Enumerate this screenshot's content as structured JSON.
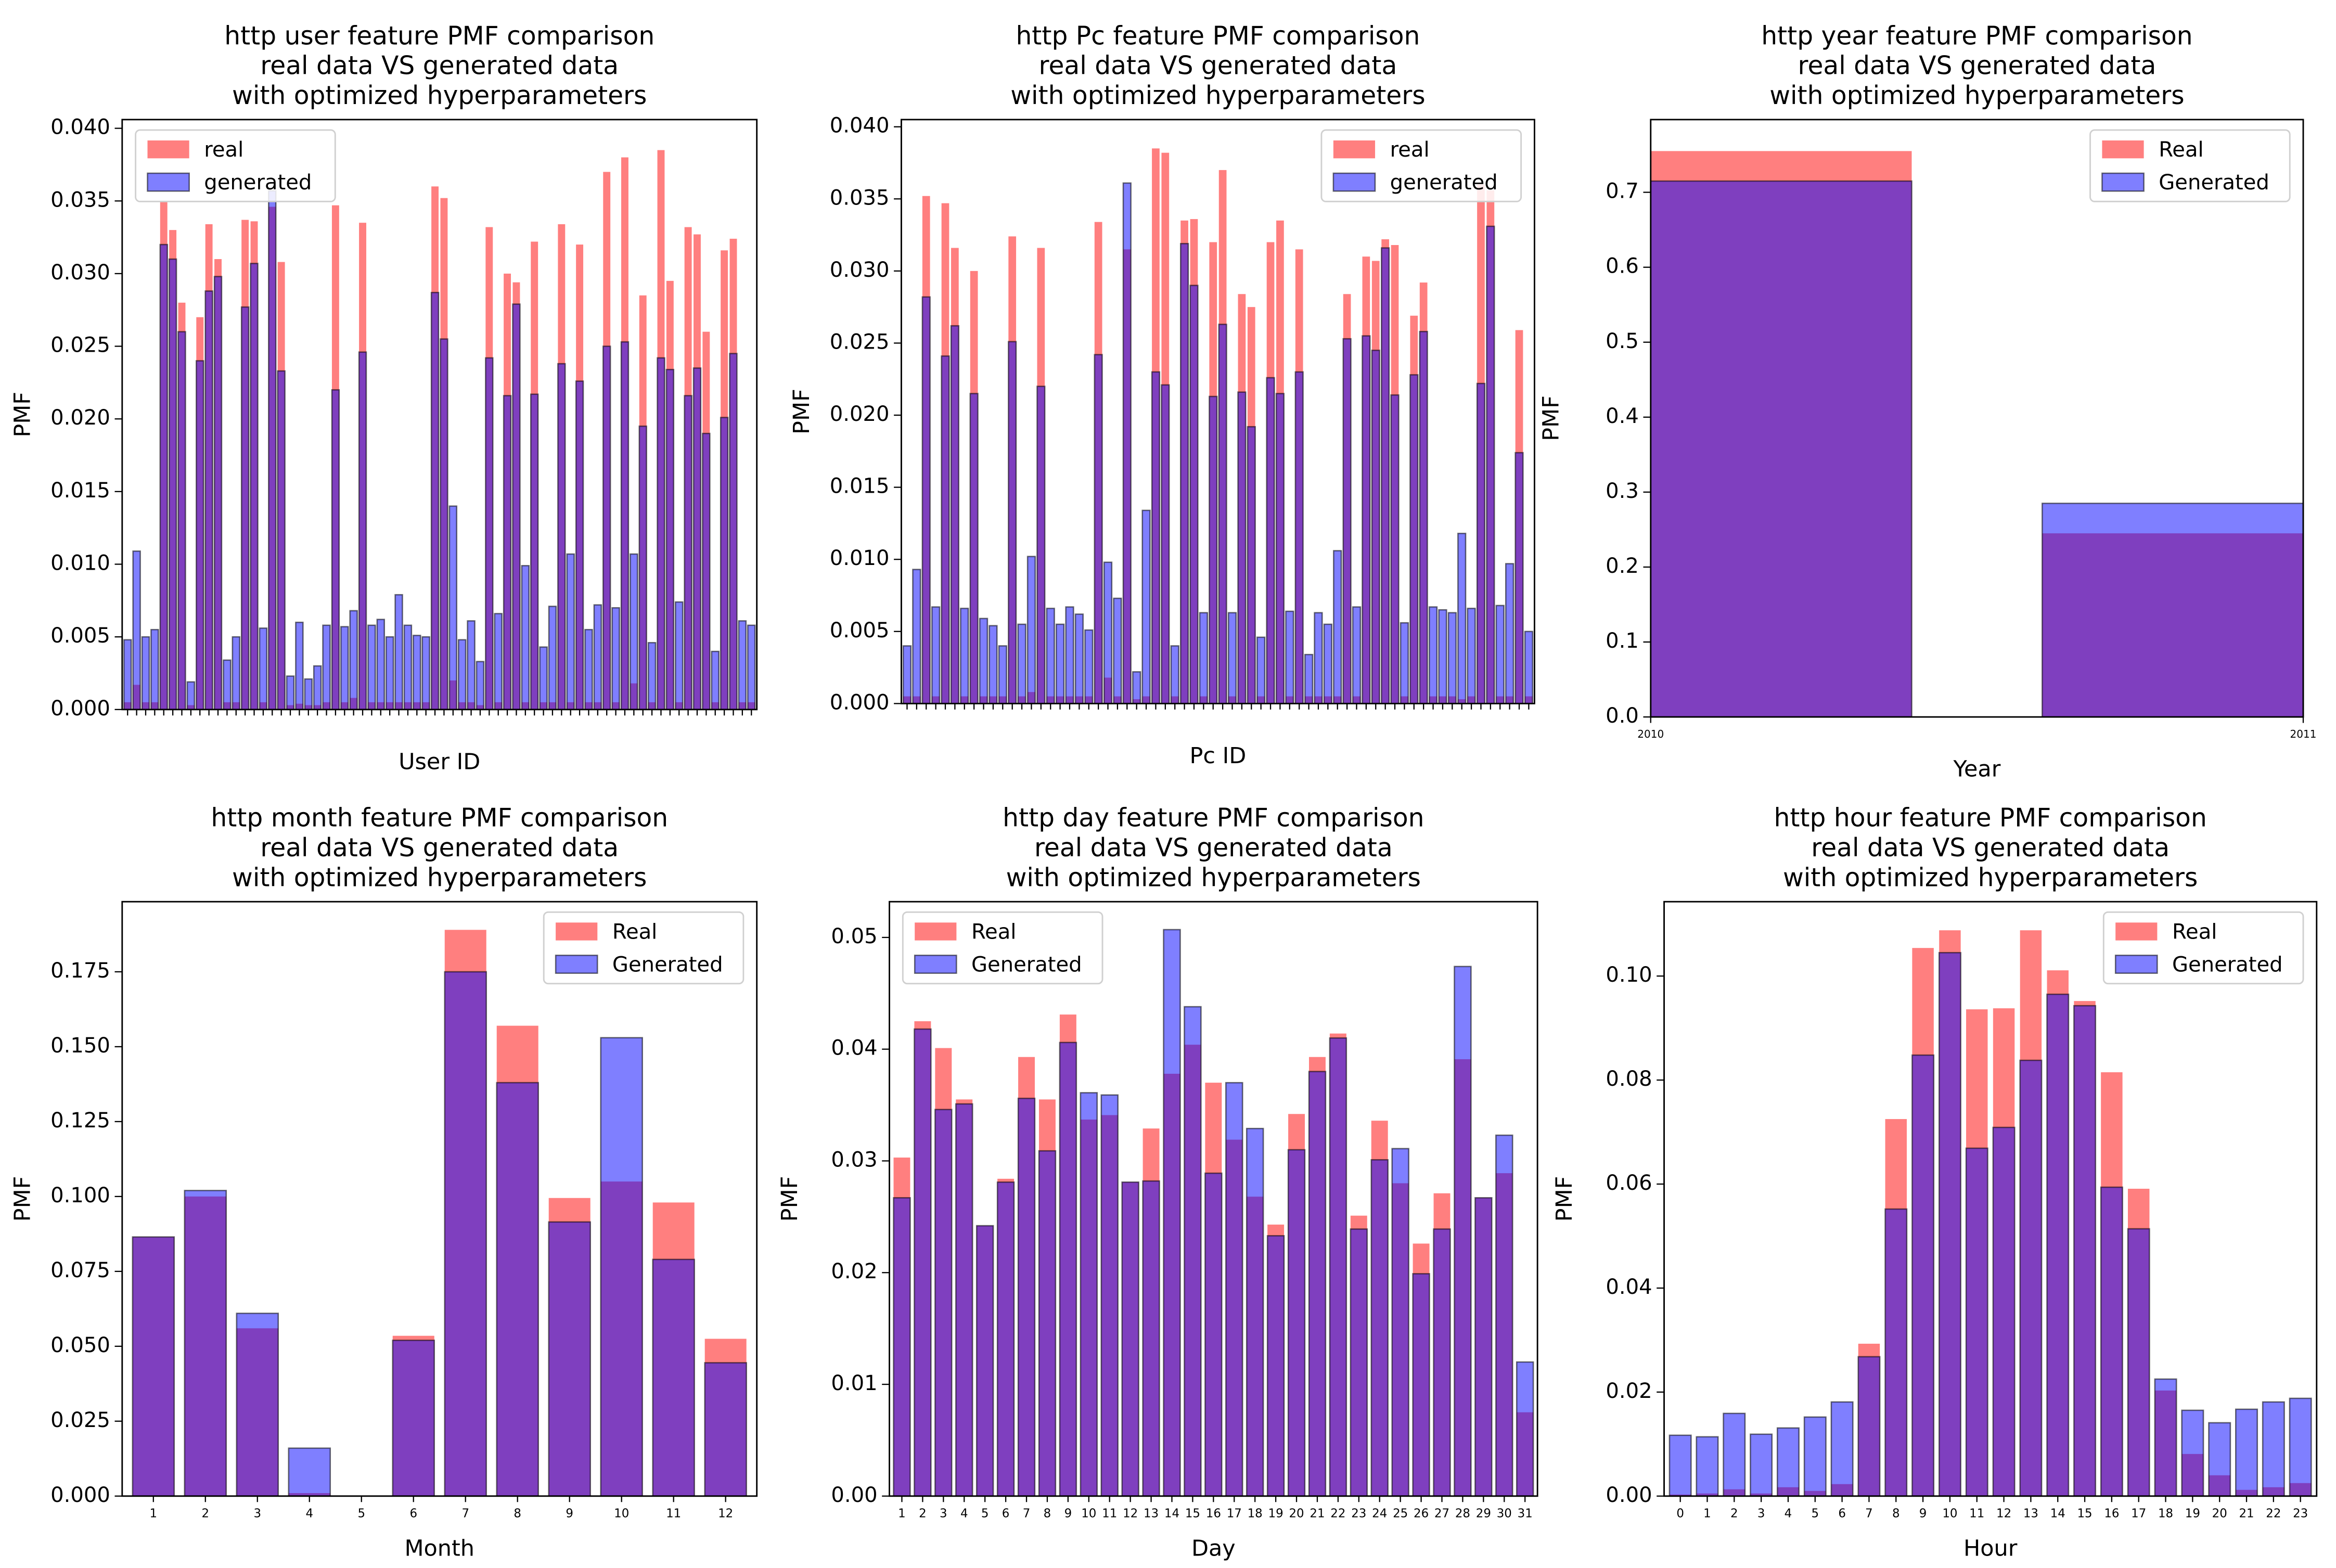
{
  "chart_data": [
    {
      "type": "bar",
      "title": [
        "http user feature PMF comparison",
        "real data VS generated data",
        "with optimized hyperparameters"
      ],
      "xlabel": "User ID",
      "ylabel": "PMF",
      "legend": "upper left",
      "categories": [
        null,
        null,
        null,
        null,
        null,
        null,
        null,
        null,
        null,
        null,
        null,
        null,
        null,
        null,
        null,
        null,
        null,
        null,
        null,
        null,
        null,
        null,
        null,
        null,
        null,
        null,
        null,
        null,
        null,
        null,
        null,
        null,
        null,
        null,
        null,
        null,
        null,
        null,
        null,
        null,
        null,
        null,
        null,
        null,
        null,
        null,
        null,
        null,
        null,
        null,
        null,
        null,
        null,
        null,
        null,
        null,
        null,
        null,
        null,
        null,
        null,
        null,
        null,
        null,
        null,
        null,
        null,
        null,
        null,
        null
      ],
      "series": [
        {
          "name": "real",
          "color": "#ff0000",
          "values": [
            0.0005,
            0.0017,
            0.0005,
            0.0005,
            0.035,
            0.033,
            0.028,
            0.0003,
            0.027,
            0.0334,
            0.031,
            0.0005,
            0.0005,
            0.0337,
            0.0336,
            0.0005,
            0.0346,
            0.0308,
            0.0003,
            0.0004,
            0.0003,
            0.0003,
            0.0005,
            0.0347,
            0.0005,
            0.0008,
            0.0335,
            0.0005,
            0.0005,
            0.0005,
            0.0005,
            0.0005,
            0.0005,
            0.0005,
            0.036,
            0.0352,
            0.002,
            0.0005,
            0.0005,
            0.0003,
            0.0332,
            0.0005,
            0.03,
            0.0294,
            0.0005,
            0.0322,
            0.0005,
            0.0005,
            0.0334,
            0.0005,
            0.032,
            0.0005,
            0.0005,
            0.037,
            0.0005,
            0.038,
            0.0018,
            0.0285,
            0.0005,
            0.0385,
            0.0295,
            0.0005,
            0.0332,
            0.0327,
            0.026,
            0.0005,
            0.0316,
            0.0324,
            0.0005,
            0.0005
          ]
        },
        {
          "name": "generated",
          "color": "#0000ff",
          "values": [
            0.0048,
            0.0109,
            0.005,
            0.0055,
            0.032,
            0.031,
            0.026,
            0.0019,
            0.024,
            0.0288,
            0.0298,
            0.0034,
            0.005,
            0.0277,
            0.0307,
            0.0056,
            0.0357,
            0.0233,
            0.0023,
            0.006,
            0.0021,
            0.003,
            0.0058,
            0.022,
            0.0057,
            0.0068,
            0.0246,
            0.0058,
            0.0062,
            0.005,
            0.0079,
            0.0058,
            0.0051,
            0.005,
            0.0287,
            0.0255,
            0.014,
            0.0048,
            0.0061,
            0.0033,
            0.0242,
            0.0066,
            0.0216,
            0.0279,
            0.0099,
            0.0217,
            0.0043,
            0.0071,
            0.0238,
            0.0107,
            0.0226,
            0.0055,
            0.0072,
            0.025,
            0.007,
            0.0253,
            0.0107,
            0.0195,
            0.0046,
            0.0242,
            0.0234,
            0.0074,
            0.0216,
            0.0235,
            0.019,
            0.004,
            0.0201,
            0.0245,
            0.0061,
            0.0058
          ]
        }
      ],
      "ylim": [
        0,
        0.0406
      ],
      "yticks": [
        {
          "value": 0,
          "label": "0.000"
        },
        {
          "value": 0.005,
          "label": "0.005"
        },
        {
          "value": 0.01,
          "label": "0.010"
        },
        {
          "value": 0.015,
          "label": "0.015"
        },
        {
          "value": 0.02,
          "label": "0.020"
        },
        {
          "value": 0.025,
          "label": "0.025"
        },
        {
          "value": 0.03,
          "label": "0.030"
        },
        {
          "value": 0.035,
          "label": "0.035"
        },
        {
          "value": 0.04,
          "label": "0.040"
        }
      ]
    },
    {
      "type": "bar",
      "title": [
        "http Pc feature PMF comparison",
        "real data VS generated data",
        "with optimized hyperparameters"
      ],
      "xlabel": "Pc ID",
      "ylabel": "PMF",
      "legend": "upper right",
      "categories": [
        null,
        null,
        null,
        null,
        null,
        null,
        null,
        null,
        null,
        null,
        null,
        null,
        null,
        null,
        null,
        null,
        null,
        null,
        null,
        null,
        null,
        null,
        null,
        null,
        null,
        null,
        null,
        null,
        null,
        null,
        null,
        null,
        null,
        null,
        null,
        null,
        null,
        null,
        null,
        null,
        null,
        null,
        null,
        null,
        null,
        null,
        null,
        null,
        null,
        null,
        null,
        null,
        null,
        null,
        null,
        null,
        null,
        null,
        null,
        null,
        null,
        null,
        null,
        null,
        null,
        null
      ],
      "series": [
        {
          "name": "real",
          "color": "#ff0000",
          "values": [
            0.0005,
            0.0005,
            0.0352,
            0.0005,
            0.0347,
            0.0316,
            0.0005,
            0.03,
            0.0005,
            0.0005,
            0.0005,
            0.0324,
            0.0005,
            0.0008,
            0.0316,
            0.0005,
            0.0005,
            0.0005,
            0.0005,
            0.0005,
            0.0334,
            0.0018,
            0.0005,
            0.0315,
            0.0003,
            0.0005,
            0.0385,
            0.0382,
            0.0005,
            0.0335,
            0.0336,
            0.0005,
            0.032,
            0.037,
            0.0005,
            0.0284,
            0.0275,
            0.0005,
            0.032,
            0.0335,
            0.0005,
            0.0315,
            0.0005,
            0.0005,
            0.0005,
            0.0005,
            0.0284,
            0.0005,
            0.031,
            0.0307,
            0.0322,
            0.0318,
            0.0005,
            0.0269,
            0.0292,
            0.0005,
            0.0005,
            0.0005,
            0.0003,
            0.0005,
            0.036,
            0.0356,
            0.0005,
            0.0005,
            0.0259,
            0.0005
          ]
        },
        {
          "name": "generated",
          "color": "#0000ff",
          "values": [
            0.004,
            0.0093,
            0.0282,
            0.0067,
            0.0241,
            0.0262,
            0.0066,
            0.0215,
            0.0059,
            0.0054,
            0.004,
            0.0251,
            0.0055,
            0.0102,
            0.022,
            0.0066,
            0.0055,
            0.0067,
            0.0062,
            0.0051,
            0.0242,
            0.0098,
            0.0073,
            0.0361,
            0.0022,
            0.0134,
            0.023,
            0.0221,
            0.004,
            0.0319,
            0.029,
            0.0063,
            0.0213,
            0.0263,
            0.0063,
            0.0216,
            0.0192,
            0.0046,
            0.0226,
            0.0215,
            0.0064,
            0.023,
            0.0034,
            0.0063,
            0.0055,
            0.0106,
            0.0253,
            0.0067,
            0.0255,
            0.0245,
            0.0316,
            0.0214,
            0.0056,
            0.0228,
            0.0258,
            0.0067,
            0.0065,
            0.0063,
            0.0118,
            0.0066,
            0.0222,
            0.0331,
            0.0068,
            0.0097,
            0.0174,
            0.005
          ]
        }
      ],
      "ylim": [
        0,
        0.0405
      ],
      "yticks": [
        {
          "value": 0,
          "label": "0.000"
        },
        {
          "value": 0.005,
          "label": "0.005"
        },
        {
          "value": 0.01,
          "label": "0.010"
        },
        {
          "value": 0.015,
          "label": "0.015"
        },
        {
          "value": 0.02,
          "label": "0.020"
        },
        {
          "value": 0.025,
          "label": "0.025"
        },
        {
          "value": 0.03,
          "label": "0.030"
        },
        {
          "value": 0.035,
          "label": "0.035"
        },
        {
          "value": 0.04,
          "label": "0.040"
        }
      ]
    },
    {
      "type": "histogram",
      "title": [
        "http year feature PMF comparison",
        "real data VS generated data",
        "with optimized hyperparameters"
      ],
      "xlabel": "Year",
      "ylabel": "PMF",
      "legend": "upper right",
      "bins": [
        2010,
        2010.5,
        2011
      ],
      "series": [
        {
          "name": "Real",
          "color": "#ff0000",
          "values": [
            0.755,
            0.245
          ]
        },
        {
          "name": "Generated",
          "color": "#0000ff",
          "values": [
            0.715,
            0.285
          ]
        }
      ],
      "xlim": [
        2010,
        2011
      ],
      "xticks": [
        2010,
        2011
      ],
      "ylim": [
        0,
        0.797
      ],
      "yticks": [
        {
          "value": 0,
          "label": "0.0"
        },
        {
          "value": 0.1,
          "label": "0.1"
        },
        {
          "value": 0.2,
          "label": "0.2"
        },
        {
          "value": 0.3,
          "label": "0.3"
        },
        {
          "value": 0.4,
          "label": "0.4"
        },
        {
          "value": 0.5,
          "label": "0.5"
        },
        {
          "value": 0.6,
          "label": "0.6"
        },
        {
          "value": 0.7,
          "label": "0.7"
        }
      ]
    },
    {
      "type": "bar",
      "title": [
        "http month feature PMF comparison",
        "real data VS generated data",
        "with optimized hyperparameters"
      ],
      "xlabel": "Month",
      "ylabel": "PMF",
      "legend": "upper right",
      "categories": [
        "1",
        "2",
        "3",
        "4",
        "5",
        "6",
        "7",
        "8",
        "9",
        "10",
        "11",
        "12"
      ],
      "series": [
        {
          "name": "Real",
          "color": "#ff0000",
          "values": [
            0.0865,
            0.1,
            0.056,
            0.001,
            0,
            0.0535,
            0.189,
            0.157,
            0.0995,
            0.105,
            0.098,
            0.0525
          ]
        },
        {
          "name": "Generated",
          "color": "#0000ff",
          "values": [
            0.0865,
            0.102,
            0.061,
            0.016,
            0,
            0.052,
            0.175,
            0.138,
            0.0915,
            0.153,
            0.079,
            0.0445
          ]
        }
      ],
      "ylim": [
        0,
        0.1984
      ],
      "yticks": [
        {
          "value": 0,
          "label": "0.000"
        },
        {
          "value": 0.025,
          "label": "0.025"
        },
        {
          "value": 0.05,
          "label": "0.050"
        },
        {
          "value": 0.075,
          "label": "0.075"
        },
        {
          "value": 0.1,
          "label": "0.100"
        },
        {
          "value": 0.125,
          "label": "0.125"
        },
        {
          "value": 0.15,
          "label": "0.150"
        },
        {
          "value": 0.175,
          "label": "0.175"
        }
      ]
    },
    {
      "type": "bar",
      "title": [
        "http day feature PMF comparison",
        "real data VS generated data",
        "with optimized hyperparameters"
      ],
      "xlabel": "Day",
      "ylabel": "PMF",
      "legend": "upper left",
      "categories": [
        "1",
        "2",
        "3",
        "4",
        "5",
        "6",
        "7",
        "8",
        "9",
        "10",
        "11",
        "12",
        "13",
        "14",
        "15",
        "16",
        "17",
        "18",
        "19",
        "20",
        "21",
        "22",
        "23",
        "24",
        "25",
        "26",
        "27",
        "28",
        "29",
        "30",
        "31"
      ],
      "series": [
        {
          "name": "Real",
          "color": "#ff0000",
          "values": [
            0.0303,
            0.0425,
            0.0401,
            0.0355,
            0.0242,
            0.0284,
            0.0393,
            0.0355,
            0.0431,
            0.0337,
            0.0341,
            0.0281,
            0.0329,
            0.0378,
            0.0404,
            0.037,
            0.0319,
            0.0268,
            0.0243,
            0.0342,
            0.0393,
            0.0414,
            0.0251,
            0.0336,
            0.028,
            0.0226,
            0.0271,
            0.0391,
            0.0267,
            0.0289,
            0.0075
          ]
        },
        {
          "name": "Generated",
          "color": "#0000ff",
          "values": [
            0.0267,
            0.0418,
            0.0346,
            0.0351,
            0.0242,
            0.0281,
            0.0356,
            0.0309,
            0.0406,
            0.0361,
            0.0359,
            0.0281,
            0.0282,
            0.0507,
            0.0438,
            0.0289,
            0.037,
            0.0329,
            0.0233,
            0.031,
            0.038,
            0.041,
            0.0239,
            0.0301,
            0.0311,
            0.0199,
            0.0239,
            0.0474,
            0.0267,
            0.0323,
            0.012
          ]
        }
      ],
      "ylim": [
        0,
        0.0532
      ],
      "yticks": [
        {
          "value": 0,
          "label": "0.00"
        },
        {
          "value": 0.01,
          "label": "0.01"
        },
        {
          "value": 0.02,
          "label": "0.02"
        },
        {
          "value": 0.03,
          "label": "0.03"
        },
        {
          "value": 0.04,
          "label": "0.04"
        },
        {
          "value": 0.05,
          "label": "0.05"
        }
      ]
    },
    {
      "type": "bar",
      "title": [
        "http hour feature PMF comparison",
        "real data VS generated data",
        "with optimized hyperparameters"
      ],
      "xlabel": "Hour",
      "ylabel": "PMF",
      "legend": "upper right",
      "categories": [
        "0",
        "1",
        "2",
        "3",
        "4",
        "5",
        "6",
        "7",
        "8",
        "9",
        "10",
        "11",
        "12",
        "13",
        "14",
        "15",
        "16",
        "17",
        "18",
        "19",
        "20",
        "21",
        "22",
        "23"
      ],
      "series": [
        {
          "name": "Real",
          "color": "#ff0000",
          "values": [
            0.0003,
            0.0005,
            0.0013,
            0.0005,
            0.0017,
            0.001,
            0.0023,
            0.0293,
            0.0725,
            0.1054,
            0.1088,
            0.0936,
            0.0938,
            0.1088,
            0.1011,
            0.0952,
            0.0815,
            0.0591,
            0.0203,
            0.0081,
            0.004,
            0.0012,
            0.0017,
            0.0025
          ]
        },
        {
          "name": "Generated",
          "color": "#0000ff",
          "values": [
            0.0117,
            0.0114,
            0.0159,
            0.0119,
            0.0131,
            0.0152,
            0.0181,
            0.0268,
            0.0552,
            0.0848,
            0.1045,
            0.0669,
            0.0709,
            0.0838,
            0.0965,
            0.0943,
            0.0594,
            0.0514,
            0.0225,
            0.0165,
            0.0141,
            0.0167,
            0.0181,
            0.0188
          ]
        }
      ],
      "ylim": [
        0,
        0.1143
      ],
      "yticks": [
        {
          "value": 0,
          "label": "0.00"
        },
        {
          "value": 0.02,
          "label": "0.02"
        },
        {
          "value": 0.04,
          "label": "0.04"
        },
        {
          "value": 0.06,
          "label": "0.06"
        },
        {
          "value": 0.08,
          "label": "0.08"
        },
        {
          "value": 0.1,
          "label": "0.10"
        }
      ]
    }
  ]
}
